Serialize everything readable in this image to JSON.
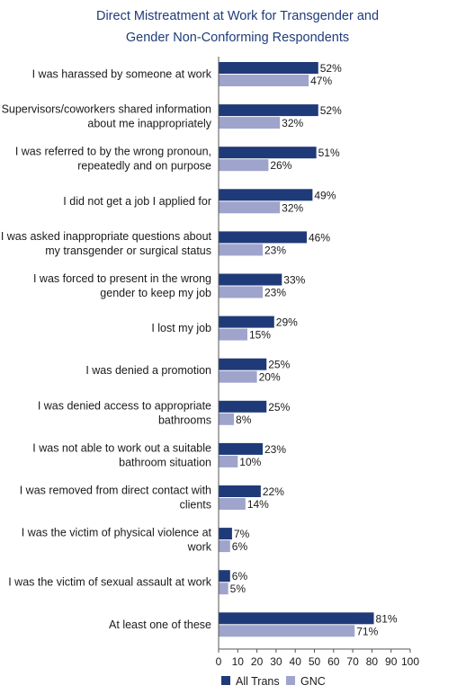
{
  "chart_data": {
    "type": "bar",
    "orientation": "horizontal",
    "title_lines": [
      "Direct Mistreatment at Work for Transgender and",
      "Gender Non-Conforming Respondents"
    ],
    "categories": [
      [
        "I was harassed by someone at work"
      ],
      [
        "Supervisors/coworkers shared information",
        "about me inappropriately"
      ],
      [
        "I was referred to by the wrong pronoun,",
        "repeatedly and on purpose"
      ],
      [
        "I did not get a job I applied for"
      ],
      [
        "I was asked inappropriate questions about",
        "my transgender or surgical status"
      ],
      [
        "I was forced to present in the wrong",
        "gender to keep my job"
      ],
      [
        "I lost my job"
      ],
      [
        "I was denied a promotion"
      ],
      [
        "I was denied access to appropriate",
        "bathrooms"
      ],
      [
        "I was not able to work out a suitable",
        "bathroom situation"
      ],
      [
        "I was removed from direct contact with",
        "clients"
      ],
      [
        "I was the victim of physical violence at",
        "work"
      ],
      [
        "I was the victim of sexual assault at work"
      ],
      [
        "At least one of these"
      ]
    ],
    "series": [
      {
        "name": "All Trans",
        "color": "#1f3a78",
        "values": [
          52,
          52,
          51,
          49,
          46,
          33,
          29,
          25,
          25,
          23,
          22,
          7,
          6,
          81
        ]
      },
      {
        "name": "GNC",
        "color": "#9ea4cc",
        "values": [
          47,
          32,
          26,
          32,
          23,
          23,
          15,
          20,
          8,
          10,
          14,
          6,
          5,
          71
        ]
      }
    ],
    "value_suffix": "%",
    "xlim": [
      0,
      100
    ],
    "xticks": [
      0,
      10,
      20,
      30,
      40,
      50,
      60,
      70,
      80,
      90,
      100
    ],
    "grid": false,
    "legend_position": "bottom"
  }
}
